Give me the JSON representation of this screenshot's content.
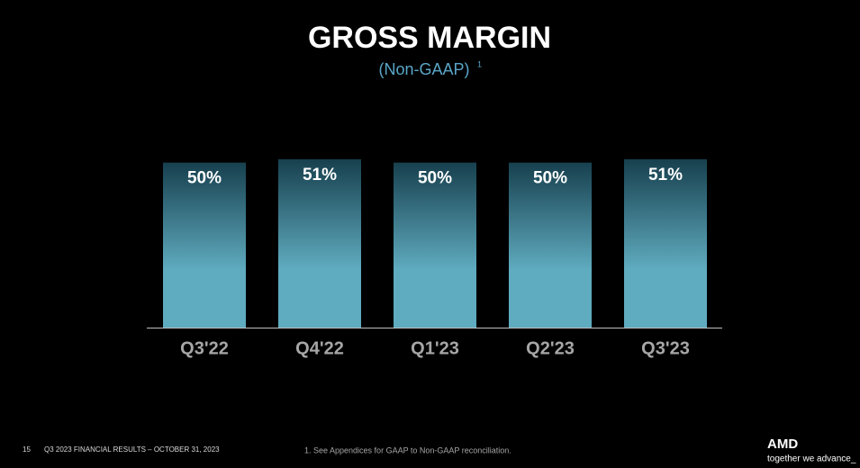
{
  "chart_data": {
    "type": "bar",
    "title": "GROSS MARGIN",
    "subtitle": "(Non-GAAP)",
    "subtitle_note": "1",
    "categories": [
      "Q3'22",
      "Q4'22",
      "Q1'23",
      "Q2'23",
      "Q3'23"
    ],
    "values": [
      50,
      51,
      50,
      50,
      51
    ],
    "value_labels": [
      "50%",
      "51%",
      "50%",
      "50%",
      "51%"
    ],
    "color": "#5fabbf",
    "color_top": "#17404e"
  },
  "footer": {
    "page": "15",
    "text": "Q3 2023 FINANCIAL RESULTS – OCTOBER 31, 2023",
    "footnote": "1.  See Appendices for GAAP to Non-GAAP reconciliation.",
    "brand": "AMD",
    "tagline": "together we advance_"
  }
}
